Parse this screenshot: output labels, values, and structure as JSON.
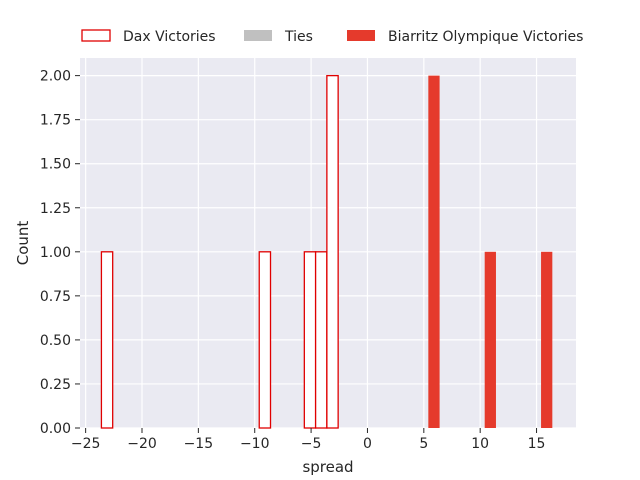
{
  "chart_data": {
    "type": "bar",
    "subtype": "histogram",
    "xlabel": "spread",
    "ylabel": "Count",
    "xlim": [
      -25.5,
      18.5
    ],
    "ylim": [
      0,
      2.1
    ],
    "xticks": [
      -25,
      -20,
      -15,
      -10,
      -5,
      0,
      5,
      10,
      15
    ],
    "xtick_labels": [
      "−25",
      "−20",
      "−15",
      "−10",
      "−5",
      "0",
      "5",
      "10",
      "15"
    ],
    "yticks": [
      0,
      0.25,
      0.5,
      0.75,
      1.0,
      1.25,
      1.5,
      1.75,
      2.0
    ],
    "ytick_labels": [
      "0.00",
      "0.25",
      "0.50",
      "0.75",
      "1.00",
      "1.25",
      "1.50",
      "1.75",
      "2.00"
    ],
    "grid": true,
    "legend_position": "top",
    "series": [
      {
        "name": "Dax Victories",
        "style": "outline",
        "color": "#e00000",
        "bars": [
          {
            "x0": -23.6,
            "x1": -22.6,
            "count": 1
          },
          {
            "x0": -9.6,
            "x1": -8.6,
            "count": 1
          },
          {
            "x0": -5.6,
            "x1": -4.6,
            "count": 1
          },
          {
            "x0": -4.6,
            "x1": -3.6,
            "count": 1
          },
          {
            "x0": -3.6,
            "x1": -2.6,
            "count": 2
          }
        ]
      },
      {
        "name": "Ties",
        "style": "filled",
        "color": "#c0c0c0",
        "bars": []
      },
      {
        "name": "Biarritz Olympique Victories",
        "style": "filled",
        "color": "#e53a2c",
        "bars": [
          {
            "x0": 5.4,
            "x1": 6.4,
            "count": 2
          },
          {
            "x0": 10.4,
            "x1": 11.4,
            "count": 1
          },
          {
            "x0": 15.4,
            "x1": 16.4,
            "count": 1
          }
        ]
      }
    ]
  }
}
